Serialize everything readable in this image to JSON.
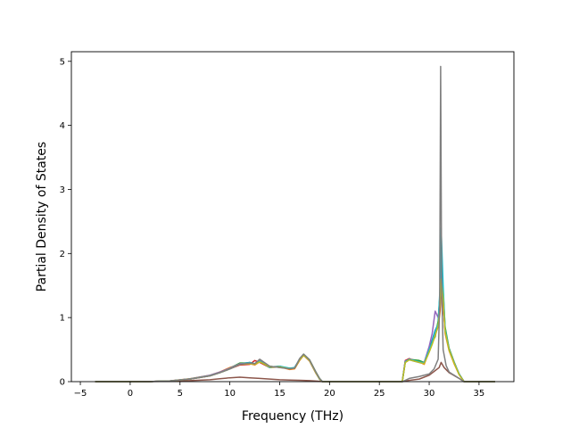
{
  "chart_data": {
    "type": "line",
    "title": "",
    "xlabel": "Frequency (THz)",
    "ylabel": "Partial Density of States",
    "xlim": [
      -5.9,
      38.5
    ],
    "ylim": [
      0,
      5.15
    ],
    "x_ticks": [
      -5,
      0,
      5,
      10,
      15,
      20,
      25,
      30,
      35
    ],
    "y_ticks": [
      0,
      1,
      2,
      3,
      4,
      5
    ],
    "x_tick_labels": [
      "−5",
      "0",
      "5",
      "10",
      "15",
      "20",
      "25",
      "30",
      "35"
    ],
    "y_tick_labels": [
      "0",
      "1",
      "2",
      "3",
      "4",
      "5"
    ],
    "grid": false,
    "legend": "none",
    "series": [
      {
        "color": "#1f77b4",
        "x": [
          -3.5,
          0,
          2,
          4,
          6,
          8,
          9,
          10,
          11,
          12,
          12.5,
          13,
          14,
          15,
          16,
          16.5,
          17,
          17.4,
          18,
          18.6,
          19,
          19.3,
          27.3,
          27.6,
          28,
          28.5,
          29,
          29.5,
          30,
          30.3,
          30.6,
          30.9,
          31.1,
          31.2,
          31.4,
          31.6,
          32,
          32.5,
          33,
          33.5,
          36.6
        ],
        "y": [
          0,
          0,
          0.002,
          0.01,
          0.04,
          0.09,
          0.14,
          0.2,
          0.28,
          0.3,
          0.27,
          0.33,
          0.23,
          0.24,
          0.2,
          0.22,
          0.35,
          0.42,
          0.33,
          0.15,
          0.04,
          0,
          0,
          0.32,
          0.35,
          0.32,
          0.3,
          0.28,
          0.5,
          0.65,
          0.8,
          0.9,
          1.2,
          1.8,
          1.3,
          0.8,
          0.5,
          0.3,
          0.12,
          0,
          0
        ]
      },
      {
        "color": "#ff7f0e",
        "x": [
          -3.5,
          0,
          2,
          4,
          6,
          8,
          9,
          10,
          11,
          12,
          12.5,
          13,
          14,
          15,
          16,
          16.5,
          17,
          17.4,
          18,
          18.6,
          19,
          19.3,
          27.3,
          27.6,
          28,
          28.5,
          29,
          29.5,
          30,
          30.3,
          30.6,
          30.9,
          31.1,
          31.2,
          31.4,
          31.6,
          32,
          32.5,
          33,
          33.5,
          36.6
        ],
        "y": [
          0,
          0,
          0.002,
          0.012,
          0.045,
          0.1,
          0.15,
          0.22,
          0.27,
          0.28,
          0.26,
          0.31,
          0.22,
          0.23,
          0.19,
          0.2,
          0.33,
          0.41,
          0.32,
          0.14,
          0.04,
          0,
          0,
          0.3,
          0.34,
          0.33,
          0.31,
          0.27,
          0.48,
          0.6,
          0.75,
          0.85,
          1.1,
          1.6,
          1.25,
          0.75,
          0.48,
          0.28,
          0.11,
          0,
          0
        ]
      },
      {
        "color": "#2ca02c",
        "x": [
          -3.5,
          0,
          2,
          4,
          6,
          8,
          9,
          10,
          11,
          12,
          12.5,
          13,
          14,
          15,
          16,
          16.5,
          17,
          17.4,
          18,
          18.6,
          19,
          19.3,
          27.3,
          27.6,
          28,
          28.5,
          29,
          29.5,
          30,
          30.3,
          30.6,
          30.9,
          31.1,
          31.2,
          31.4,
          31.6,
          32,
          32.5,
          33,
          33.5,
          36.6
        ],
        "y": [
          0,
          0,
          0.002,
          0.011,
          0.042,
          0.095,
          0.145,
          0.21,
          0.29,
          0.29,
          0.28,
          0.32,
          0.24,
          0.22,
          0.21,
          0.21,
          0.34,
          0.43,
          0.34,
          0.16,
          0.05,
          0,
          0,
          0.31,
          0.35,
          0.34,
          0.33,
          0.3,
          0.52,
          0.62,
          0.7,
          0.95,
          1.4,
          1.95,
          1.4,
          0.85,
          0.52,
          0.31,
          0.12,
          0,
          0
        ]
      },
      {
        "color": "#d62728",
        "x": [
          -3.5,
          0,
          2,
          4,
          6,
          8,
          9,
          10,
          11,
          12,
          12.5,
          13,
          14,
          15,
          16,
          16.5,
          17,
          17.4,
          18,
          18.6,
          19,
          19.3,
          27.3,
          27.6,
          28,
          28.5,
          29,
          29.5,
          30,
          30.3,
          30.6,
          30.9,
          31.1,
          31.2,
          31.4,
          31.6,
          32,
          32.5,
          33,
          33.5,
          36.6
        ],
        "y": [
          0,
          0,
          0.002,
          0.01,
          0.04,
          0.09,
          0.14,
          0.2,
          0.26,
          0.27,
          0.33,
          0.3,
          0.22,
          0.24,
          0.2,
          0.21,
          0.34,
          0.42,
          0.33,
          0.15,
          0.04,
          0,
          0,
          0.33,
          0.36,
          0.33,
          0.3,
          0.28,
          0.47,
          0.6,
          0.72,
          0.88,
          1.15,
          1.4,
          1.2,
          0.8,
          0.5,
          0.3,
          0.12,
          0,
          0
        ]
      },
      {
        "color": "#9467bd",
        "x": [
          -3.5,
          0,
          2,
          4,
          6,
          8,
          9,
          10,
          11,
          12,
          12.5,
          13,
          14,
          15,
          16,
          16.5,
          17,
          17.4,
          18,
          18.6,
          19,
          19.3,
          27.3,
          27.6,
          28,
          28.5,
          29,
          29.5,
          30,
          30.3,
          30.6,
          30.9,
          31.1,
          31.2,
          31.4,
          31.6,
          32,
          32.5,
          33,
          33.5,
          36.6
        ],
        "y": [
          0,
          0,
          0.002,
          0.012,
          0.043,
          0.1,
          0.15,
          0.21,
          0.28,
          0.29,
          0.27,
          0.34,
          0.23,
          0.23,
          0.2,
          0.22,
          0.34,
          0.41,
          0.33,
          0.15,
          0.04,
          0,
          0,
          0.32,
          0.34,
          0.32,
          0.3,
          0.3,
          0.55,
          0.75,
          1.1,
          1.0,
          1.3,
          1.7,
          1.3,
          0.78,
          0.5,
          0.3,
          0.12,
          0,
          0
        ]
      },
      {
        "color": "#17becf",
        "x": [
          -3.5,
          0,
          2,
          4,
          6,
          8,
          9,
          10,
          11,
          12,
          12.5,
          13,
          14,
          15,
          16,
          16.5,
          17,
          17.4,
          18,
          18.6,
          19,
          19.3,
          27.3,
          27.6,
          28,
          28.5,
          29,
          29.5,
          30,
          30.3,
          30.6,
          30.9,
          31.1,
          31.2,
          31.4,
          31.6,
          32,
          32.5,
          33,
          33.5,
          36.6
        ],
        "y": [
          0,
          0,
          0.002,
          0.011,
          0.041,
          0.092,
          0.14,
          0.2,
          0.27,
          0.3,
          0.28,
          0.32,
          0.22,
          0.24,
          0.21,
          0.22,
          0.35,
          0.42,
          0.33,
          0.15,
          0.04,
          0,
          0,
          0.31,
          0.35,
          0.33,
          0.31,
          0.29,
          0.5,
          0.62,
          0.78,
          0.9,
          1.5,
          2.4,
          1.5,
          0.82,
          0.5,
          0.3,
          0.12,
          0,
          0
        ]
      },
      {
        "color": "#8c564b",
        "x": [
          -3.5,
          0,
          2,
          4,
          6,
          8,
          9,
          10,
          11,
          12,
          13,
          14,
          15,
          16,
          17,
          18,
          19,
          19.3,
          27.3,
          27.6,
          28,
          29,
          30,
          30.5,
          31,
          31.2,
          31.5,
          32,
          33,
          33.5,
          36.6
        ],
        "y": [
          0,
          0,
          0.001,
          0.005,
          0.015,
          0.03,
          0.045,
          0.06,
          0.07,
          0.06,
          0.05,
          0.04,
          0.03,
          0.025,
          0.02,
          0.015,
          0.005,
          0,
          0,
          0.01,
          0.02,
          0.04,
          0.1,
          0.16,
          0.22,
          0.3,
          0.22,
          0.14,
          0.05,
          0,
          0
        ]
      },
      {
        "color": "#bcbd22",
        "x": [
          -3.5,
          0,
          2,
          4,
          6,
          8,
          9,
          10,
          11,
          12,
          12.5,
          13,
          14,
          15,
          16,
          16.5,
          17,
          17.4,
          18,
          18.6,
          19,
          19.3,
          27.3,
          27.6,
          28,
          28.5,
          29,
          29.5,
          30,
          30.3,
          30.6,
          30.9,
          31.1,
          31.2,
          31.4,
          31.6,
          32,
          32.5,
          33,
          33.5,
          36.6
        ],
        "y": [
          0,
          0,
          0.002,
          0.011,
          0.04,
          0.09,
          0.14,
          0.2,
          0.27,
          0.28,
          0.27,
          0.31,
          0.23,
          0.23,
          0.2,
          0.21,
          0.34,
          0.41,
          0.33,
          0.15,
          0.04,
          0,
          0,
          0.3,
          0.34,
          0.32,
          0.3,
          0.28,
          0.46,
          0.58,
          0.72,
          0.87,
          1.2,
          1.6,
          1.3,
          0.78,
          0.49,
          0.29,
          0.11,
          0,
          0
        ]
      },
      {
        "color": "#7f7f7f",
        "x": [
          -3.5,
          0,
          2,
          4,
          6,
          8,
          9,
          10,
          11,
          12,
          12.5,
          13,
          14,
          15,
          16,
          16.5,
          17,
          17.4,
          18,
          18.6,
          19,
          19.3,
          27.3,
          27.6,
          28,
          29,
          30,
          30.5,
          30.9,
          31.05,
          31.15,
          31.25,
          31.4,
          31.7,
          32,
          33,
          33.5,
          36.6
        ],
        "y": [
          0,
          0,
          0.002,
          0.01,
          0.04,
          0.09,
          0.14,
          0.2,
          0.27,
          0.29,
          0.28,
          0.35,
          0.24,
          0.22,
          0.2,
          0.21,
          0.36,
          0.43,
          0.34,
          0.16,
          0.05,
          0,
          0,
          0.02,
          0.05,
          0.08,
          0.12,
          0.2,
          0.35,
          1.2,
          4.92,
          1.5,
          0.5,
          0.25,
          0.15,
          0.05,
          0,
          0
        ]
      }
    ]
  }
}
